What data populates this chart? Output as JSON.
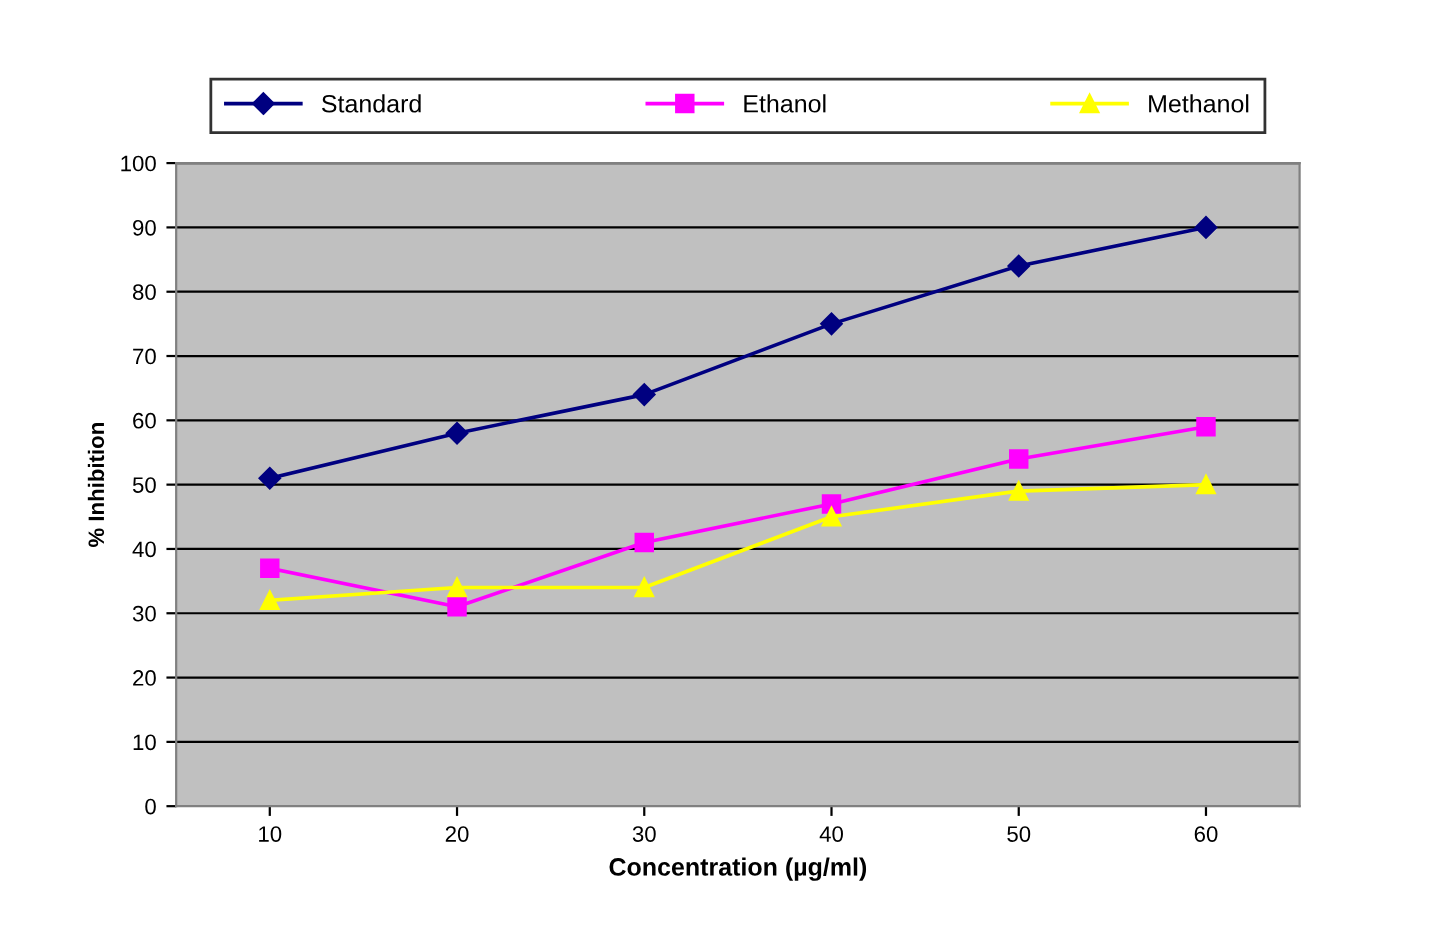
{
  "chart_data": {
    "type": "line",
    "xlabel": "Concentration (µg/ml)",
    "ylabel": "% Inhibition",
    "categories": [
      "10",
      "20",
      "30",
      "40",
      "50",
      "60"
    ],
    "series": [
      {
        "name": "Standard",
        "color": "#000080",
        "marker": "diamond",
        "values": [
          51,
          58,
          64,
          75,
          84,
          90
        ]
      },
      {
        "name": "Ethanol",
        "color": "#ff00ff",
        "marker": "square",
        "values": [
          37,
          31,
          41,
          47,
          54,
          59
        ]
      },
      {
        "name": "Methanol",
        "color": "#ffff00",
        "marker": "triangle",
        "values": [
          32,
          34,
          34,
          45,
          49,
          50
        ]
      }
    ],
    "ylim": [
      0,
      100
    ],
    "yticks": [
      0,
      10,
      20,
      30,
      40,
      50,
      60,
      70,
      80,
      90,
      100
    ],
    "grid": "y",
    "legend": "top",
    "line_style": "solid"
  }
}
